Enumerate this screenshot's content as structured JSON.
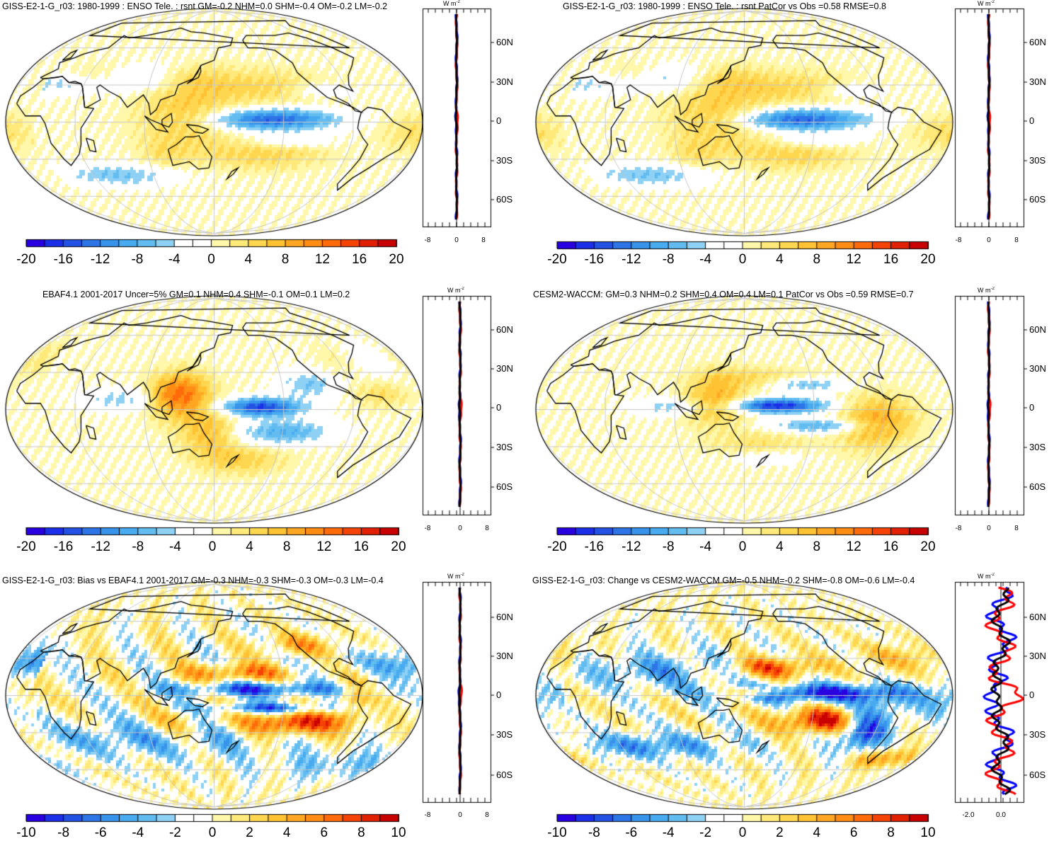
{
  "units": {
    "base": "W m",
    "exp": "-2"
  },
  "lat_labels": [
    "60N",
    "30N",
    "0",
    "30S",
    "60S"
  ],
  "colorbars": {
    "wide": {
      "labels": [
        "-20",
        "-16",
        "-12",
        "-8",
        "-4",
        "0",
        "4",
        "8",
        "12",
        "16",
        "20"
      ]
    },
    "narrow": {
      "labels": [
        "-10",
        "-8",
        "-6",
        "-4",
        "-2",
        "0",
        "2",
        "4",
        "6",
        "8",
        "10"
      ]
    }
  },
  "colors": [
    "#2900e0",
    "#1b2ee8",
    "#2251e3",
    "#2d74e6",
    "#3894eb",
    "#48aaef",
    "#62bcf0",
    "#8ed1f4",
    "#ffffff",
    "#ffffff",
    "#fff7aa",
    "#ffe97a",
    "#ffd64f",
    "#ffc233",
    "#ffa722",
    "#ff8c13",
    "#ff6a0a",
    "#f54205",
    "#e02000",
    "#c80000"
  ],
  "panels": [
    {
      "title": "GISS-E2-1-G_r03: 1980-1999 : ENSO Tele. : rsnt GM=-0.2 NHM=0.0 SHM=-0.4 OM=-0.2 LM=-0.2",
      "colorbar": "wide",
      "profile_ticks": [
        "-8",
        "0",
        "8"
      ]
    },
    {
      "title": "GISS-E2-1-G_r03: 1980-1999 : ENSO Tele. : rsnt PatCor vs Obs =0.58 RMSE=0.8",
      "colorbar": "wide",
      "profile_ticks": [
        "-8",
        "0",
        "8"
      ]
    },
    {
      "title": "EBAF4.1 2001-2017 Uncer=5% GM=0.1 NHM=0.4 SHM=-0.1 OM=0.1 LM=0.2",
      "colorbar": "wide",
      "profile_ticks": [
        "-8",
        "0",
        "8"
      ]
    },
    {
      "title": "CESM2-WACCM: GM=0.3 NHM=0.2 SHM=0.4 OM=0.4 LM=0.1 PatCor vs Obs =0.59 RMSE=0.7",
      "colorbar": "wide",
      "profile_ticks": [
        "-8",
        "0",
        "8"
      ]
    },
    {
      "title": "GISS-E2-1-G_r03: Bias vs EBAF4.1 2001-2017 GM=-0.3 NHM=-0.3 SHM=-0.3 OM=-0.3 LM=-0.4",
      "colorbar": "narrow",
      "profile_ticks": [
        "-8",
        "0",
        "8"
      ]
    },
    {
      "title": "GISS-E2-1-G_r03: Change vs CESM2-WACCM GM=-0.5 NHM=-0.2 SHM=-0.8 OM=-0.6 LM=-0.4",
      "colorbar": "narrow",
      "profile_ticks": [
        "-2.0",
        "0.0"
      ]
    }
  ]
}
